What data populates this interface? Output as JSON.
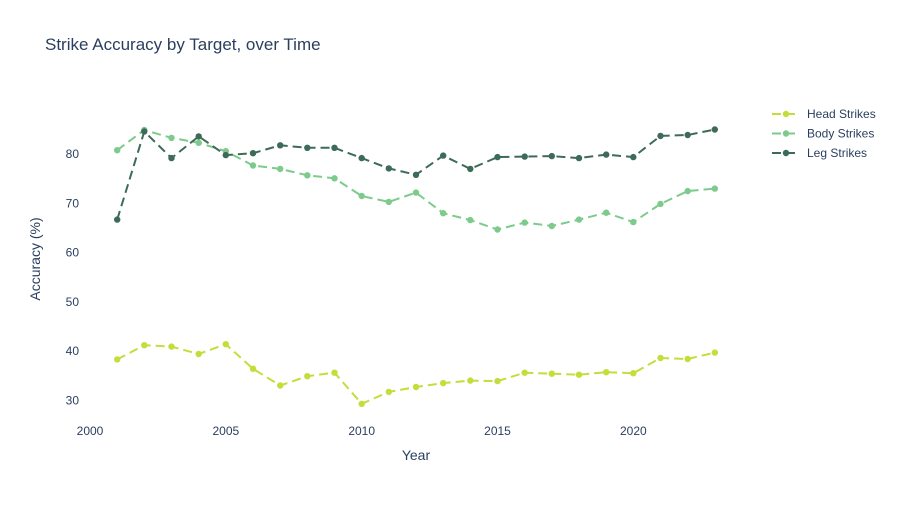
{
  "chart_data": {
    "type": "line",
    "title": "Strike Accuracy by Target, over Time",
    "xlabel": "Year",
    "ylabel": "Accuracy (%)",
    "xlim": [
      2000,
      2024
    ],
    "ylim": [
      26,
      91
    ],
    "x_ticks": [
      2000,
      2005,
      2010,
      2015,
      2020
    ],
    "y_ticks": [
      30,
      40,
      50,
      60,
      70,
      80
    ],
    "grid": false,
    "legend_position": "top-right",
    "x": [
      2001,
      2002,
      2003,
      2004,
      2005,
      2006,
      2007,
      2008,
      2009,
      2010,
      2011,
      2012,
      2013,
      2014,
      2015,
      2016,
      2017,
      2018,
      2019,
      2020,
      2021,
      2022,
      2023
    ],
    "series": [
      {
        "name": "Head Strikes",
        "color": "#c5dd3a",
        "values": [
          38.3,
          41.2,
          40.9,
          39.4,
          41.4,
          36.4,
          33.0,
          34.9,
          35.6,
          29.3,
          31.7,
          32.7,
          33.5,
          34.0,
          33.9,
          35.6,
          35.4,
          35.2,
          35.7,
          35.5,
          38.6,
          38.4,
          39.7
        ]
      },
      {
        "name": "Body Strikes",
        "color": "#7ccb8c",
        "values": [
          80.8,
          84.9,
          83.3,
          82.3,
          80.6,
          77.7,
          77.0,
          75.7,
          75.1,
          71.5,
          70.3,
          72.2,
          68.0,
          66.6,
          64.7,
          66.1,
          65.4,
          66.7,
          68.1,
          66.2,
          69.9,
          72.5,
          73.0
        ]
      },
      {
        "name": "Leg Strikes",
        "color": "#3d6b58",
        "values": [
          66.7,
          84.6,
          79.2,
          83.6,
          79.8,
          80.2,
          81.8,
          81.3,
          81.3,
          79.2,
          77.1,
          75.8,
          79.7,
          77.0,
          79.4,
          79.5,
          79.6,
          79.2,
          79.9,
          79.4,
          83.7,
          83.9,
          85.0
        ]
      }
    ]
  }
}
